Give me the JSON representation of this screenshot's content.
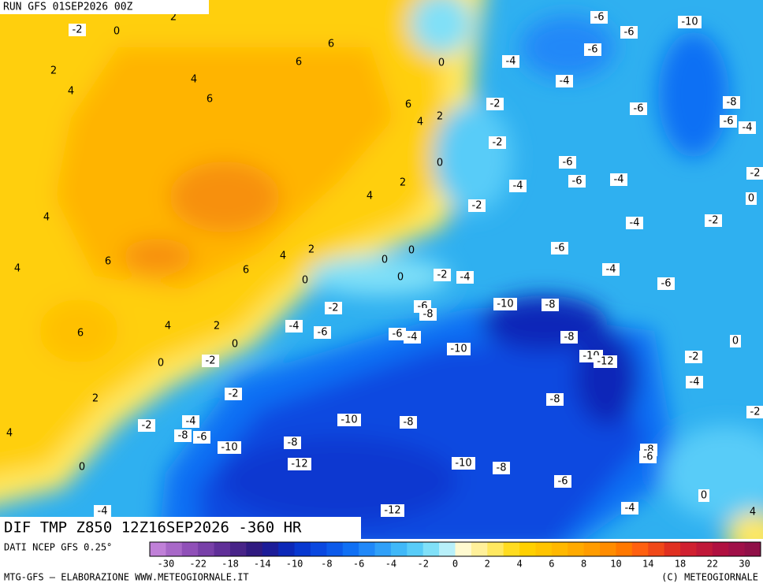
{
  "header": {
    "run": "RUN GFS 01SEP2026 00Z"
  },
  "map": {
    "labels": [
      -2,
      0,
      2,
      2,
      4,
      4,
      6,
      6,
      6,
      6,
      4,
      2,
      0,
      -4,
      -6,
      -6,
      -10,
      -6,
      -4,
      -2,
      -6,
      -8,
      -6,
      -4,
      -2,
      0,
      2,
      4,
      -6,
      -4,
      -6,
      -4,
      -2,
      0,
      -2,
      4,
      -4,
      -2,
      6,
      4,
      4,
      2,
      6,
      0,
      0,
      0,
      0,
      -2,
      -4,
      -6,
      -4,
      -6,
      -10,
      -8,
      -6,
      -8,
      -2,
      2,
      4,
      6,
      0,
      -4,
      -6,
      -6,
      -4,
      -10,
      -8,
      0,
      -10,
      -12,
      -2,
      0,
      -2,
      -4,
      -2,
      2,
      -8,
      -2,
      -4,
      -2,
      -10,
      -8,
      -8,
      -6,
      4,
      -10,
      -8,
      -8,
      -6,
      -12,
      -10,
      -8,
      0,
      -6,
      0,
      -4,
      -12,
      -4,
      4
    ]
  },
  "title": "DIF TMP Z850 12Z16SEP2026 -360 HR",
  "legend": {
    "source": "DATI NCEP GFS 0.25°",
    "colors": [
      "#c080d8",
      "#a868c8",
      "#9050b8",
      "#7840a8",
      "#602f98",
      "#482488",
      "#301a80",
      "#1c1c98",
      "#0c28b8",
      "#0838d0",
      "#0a48e0",
      "#0c5aea",
      "#1070f4",
      "#2088f8",
      "#30a0f8",
      "#40b8f8",
      "#58ccf8",
      "#80e0f8",
      "#b8f0fa",
      "#fffad0",
      "#fff09a",
      "#ffe860",
      "#ffdc20",
      "#ffd000",
      "#ffc400",
      "#ffb800",
      "#ffaa00",
      "#ff9c00",
      "#ff8c00",
      "#ff7800",
      "#ff6010",
      "#f04818",
      "#e03020",
      "#d02030",
      "#c01838",
      "#b01040",
      "#a01048",
      "#901048"
    ],
    "ticks": [
      -30,
      -22,
      -18,
      -14,
      -10,
      -8,
      -6,
      -4,
      -2,
      0,
      2,
      4,
      6,
      8,
      10,
      14,
      18,
      22,
      30
    ]
  },
  "footer": {
    "left": "MTG-GFS — ELABORAZIONE WWW.METEOGIORNALE.IT",
    "right": "(C) METEOGIORNALE"
  }
}
